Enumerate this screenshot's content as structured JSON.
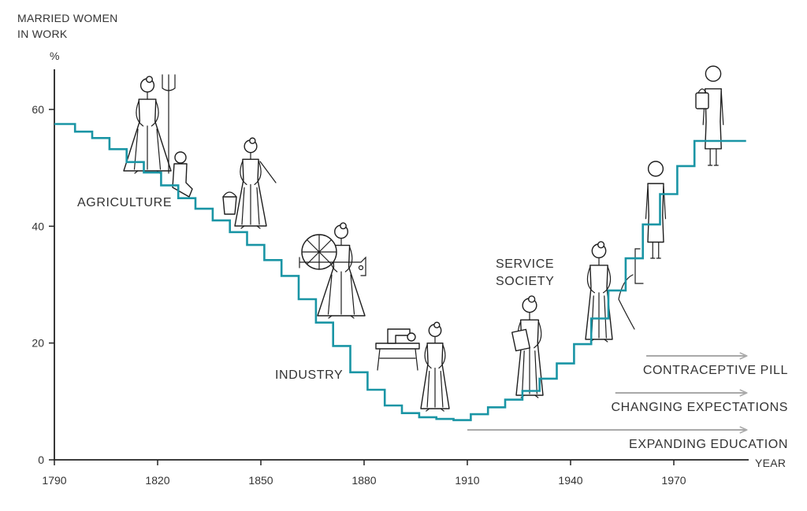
{
  "chart_data": {
    "type": "line",
    "step": true,
    "ylabel_lines": [
      "MARRIED WOMEN",
      "IN WORK"
    ],
    "yunit": "%",
    "xlabel": "YEAR",
    "xlim": [
      1790,
      1992
    ],
    "ylim": [
      0,
      70
    ],
    "xticks": [
      "1790",
      "1820",
      "1850",
      "1880",
      "1910",
      "1940",
      "1970"
    ],
    "yticks": [
      "0",
      "20",
      "40",
      "60"
    ],
    "series": [
      {
        "color": "#1a95a5",
        "x": [
          1790,
          1796,
          1801,
          1806,
          1811,
          1816,
          1821,
          1826,
          1831,
          1836,
          1841,
          1846,
          1851,
          1856,
          1861,
          1866,
          1871,
          1876,
          1881,
          1886,
          1891,
          1896,
          1901,
          1906,
          1911,
          1916,
          1921,
          1926,
          1931,
          1936,
          1941,
          1946,
          1951,
          1956,
          1961,
          1966,
          1971,
          1976,
          1981,
          1986,
          1991
        ],
        "y": [
          57.5,
          56.2,
          55.1,
          53.2,
          51.0,
          49.2,
          47.0,
          44.8,
          43.0,
          41.0,
          39.0,
          36.8,
          34.2,
          31.5,
          27.5,
          23.5,
          19.5,
          15.0,
          12.0,
          9.3,
          8.0,
          7.3,
          7.0,
          6.8,
          7.8,
          9.0,
          10.3,
          11.8,
          13.9,
          16.5,
          19.8,
          24.2,
          29.0,
          34.5,
          40.3,
          45.5,
          50.3,
          54.6,
          54.6,
          54.6,
          54.6
        ]
      }
    ],
    "eras": [
      {
        "text": "AGRICULTURE"
      },
      {
        "text": "INDUSTRY"
      },
      {
        "lines": [
          "SERVICE",
          "SOCIETY"
        ]
      }
    ],
    "trends": [
      {
        "text": "CONTRACEPTIVE PILL",
        "from": 1962,
        "to": 1991
      },
      {
        "text": "CHANGING EXPECTATIONS",
        "from": 1953,
        "to": 1991
      },
      {
        "text": "EXPANDING EDUCATION",
        "from": 1910,
        "to": 1991
      }
    ],
    "arrow_color": "#a9a9a9",
    "illustrations": [
      "farm-woman-with-pitchfork-icon",
      "seated-child-icon",
      "woman-with-bucket-icon",
      "woman-with-spinning-wheel-icon",
      "sewing-machine-icon",
      "factory-woman-icon",
      "office-woman-with-folder-icon",
      "woman-at-machine-icon",
      "standing-woman-icon",
      "professional-woman-icon"
    ]
  }
}
